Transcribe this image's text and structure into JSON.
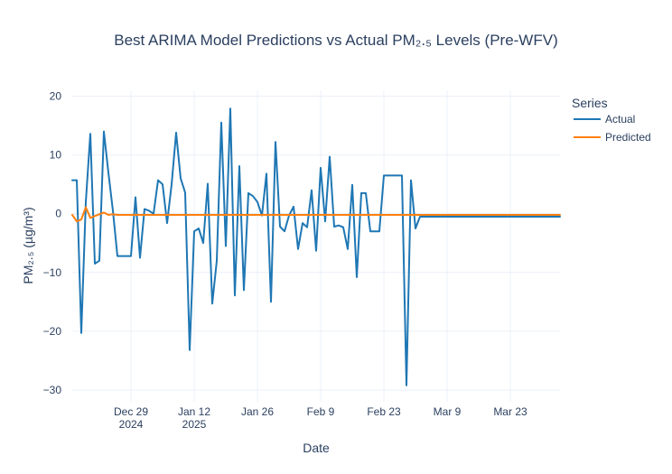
{
  "chart_data": {
    "type": "line",
    "title": "Best ARIMA Model Predictions vs Actual PM₂.₅ Levels (Pre-WFV)",
    "xlabel": "Date",
    "ylabel": "PM₂.₅ (µg/m³)",
    "x_axis_type": "date",
    "xlim": [
      "2024-12-16",
      "2025-04-03"
    ],
    "ylim": [
      -32,
      21
    ],
    "y_ticks": [
      20,
      10,
      0,
      -10,
      -20,
      -30
    ],
    "y_tick_labels": [
      "20",
      "10",
      "0",
      "−10",
      "−20",
      "−30"
    ],
    "x_ticks": [
      {
        "date": "2024-12-29",
        "label": "Dec 29",
        "sublabel": "2024"
      },
      {
        "date": "2025-01-12",
        "label": "Jan 12",
        "sublabel": "2025"
      },
      {
        "date": "2025-01-26",
        "label": "Jan 26",
        "sublabel": ""
      },
      {
        "date": "2025-02-09",
        "label": "Feb 9",
        "sublabel": ""
      },
      {
        "date": "2025-02-23",
        "label": "Feb 23",
        "sublabel": ""
      },
      {
        "date": "2025-03-09",
        "label": "Mar 9",
        "sublabel": ""
      },
      {
        "date": "2025-03-23",
        "label": "Mar 23",
        "sublabel": ""
      }
    ],
    "grid": true,
    "legend_title": "Series",
    "legend_position": "top-right",
    "series": [
      {
        "name": "Actual",
        "color": "#1f77b4",
        "points": [
          [
            "2024-12-16",
            5.7
          ],
          [
            "2024-12-17",
            5.7
          ],
          [
            "2024-12-18",
            -20.3
          ],
          [
            "2024-12-19",
            2.0
          ],
          [
            "2024-12-20",
            13.6
          ],
          [
            "2024-12-21",
            -8.5
          ],
          [
            "2024-12-22",
            -8.0
          ],
          [
            "2024-12-23",
            14.0
          ],
          [
            "2024-12-24",
            7.0
          ],
          [
            "2024-12-25",
            0.5
          ],
          [
            "2024-12-26",
            -7.2
          ],
          [
            "2024-12-27",
            -7.2
          ],
          [
            "2024-12-28",
            -7.2
          ],
          [
            "2024-12-29",
            -7.2
          ],
          [
            "2024-12-30",
            2.8
          ],
          [
            "2024-12-31",
            -7.5
          ],
          [
            "2025-01-01",
            0.8
          ],
          [
            "2025-01-02",
            0.5
          ],
          [
            "2025-01-03",
            0.0
          ],
          [
            "2025-01-04",
            5.7
          ],
          [
            "2025-01-05",
            5.0
          ],
          [
            "2025-01-06",
            -1.6
          ],
          [
            "2025-01-07",
            5.0
          ],
          [
            "2025-01-08",
            13.8
          ],
          [
            "2025-01-09",
            6.0
          ],
          [
            "2025-01-10",
            3.6
          ],
          [
            "2025-01-11",
            -23.2
          ],
          [
            "2025-01-12",
            -3.0
          ],
          [
            "2025-01-13",
            -2.5
          ],
          [
            "2025-01-14",
            -5.0
          ],
          [
            "2025-01-15",
            5.1
          ],
          [
            "2025-01-16",
            -15.3
          ],
          [
            "2025-01-17",
            -8.0
          ],
          [
            "2025-01-18",
            15.5
          ],
          [
            "2025-01-19",
            -5.5
          ],
          [
            "2025-01-20",
            17.9
          ],
          [
            "2025-01-21",
            -13.9
          ],
          [
            "2025-01-22",
            8.1
          ],
          [
            "2025-01-23",
            -13.0
          ],
          [
            "2025-01-24",
            3.5
          ],
          [
            "2025-01-25",
            3.0
          ],
          [
            "2025-01-26",
            2.0
          ],
          [
            "2025-01-27",
            -0.3
          ],
          [
            "2025-01-28",
            6.8
          ],
          [
            "2025-01-29",
            -15.0
          ],
          [
            "2025-01-30",
            12.2
          ],
          [
            "2025-01-31",
            -2.2
          ],
          [
            "2025-02-01",
            -3.0
          ],
          [
            "2025-02-02",
            -0.3
          ],
          [
            "2025-02-03",
            1.2
          ],
          [
            "2025-02-04",
            -6.0
          ],
          [
            "2025-02-05",
            -1.6
          ],
          [
            "2025-02-06",
            -2.3
          ],
          [
            "2025-02-07",
            4.0
          ],
          [
            "2025-02-08",
            -6.3
          ],
          [
            "2025-02-09",
            7.8
          ],
          [
            "2025-02-10",
            -1.3
          ],
          [
            "2025-02-11",
            9.7
          ],
          [
            "2025-02-12",
            -2.2
          ],
          [
            "2025-02-13",
            -2.0
          ],
          [
            "2025-02-14",
            -2.3
          ],
          [
            "2025-02-15",
            -6.0
          ],
          [
            "2025-02-16",
            4.9
          ],
          [
            "2025-02-17",
            -10.8
          ],
          [
            "2025-02-18",
            3.5
          ],
          [
            "2025-02-19",
            3.5
          ],
          [
            "2025-02-20",
            -3.0
          ],
          [
            "2025-02-21",
            -3.0
          ],
          [
            "2025-02-22",
            -3.0
          ],
          [
            "2025-02-23",
            6.5
          ],
          [
            "2025-02-24",
            6.5
          ],
          [
            "2025-02-25",
            6.5
          ],
          [
            "2025-02-26",
            6.5
          ],
          [
            "2025-02-27",
            6.5
          ],
          [
            "2025-02-28",
            -29.2
          ],
          [
            "2025-03-01",
            5.7
          ],
          [
            "2025-03-02",
            -2.5
          ],
          [
            "2025-03-03",
            -0.5
          ],
          [
            "2025-04-03",
            -0.5
          ]
        ]
      },
      {
        "name": "Predicted",
        "color": "#ff7f0e",
        "points": [
          [
            "2024-12-16",
            -0.2
          ],
          [
            "2024-12-17",
            -1.3
          ],
          [
            "2024-12-18",
            -1.0
          ],
          [
            "2024-12-19",
            1.1
          ],
          [
            "2024-12-20",
            -0.7
          ],
          [
            "2024-12-21",
            -0.4
          ],
          [
            "2024-12-22",
            -0.1
          ],
          [
            "2024-12-23",
            0.2
          ],
          [
            "2024-12-24",
            -0.2
          ],
          [
            "2024-12-25",
            -0.1
          ],
          [
            "2024-12-26",
            -0.2
          ],
          [
            "2025-04-03",
            -0.2
          ]
        ]
      }
    ]
  }
}
